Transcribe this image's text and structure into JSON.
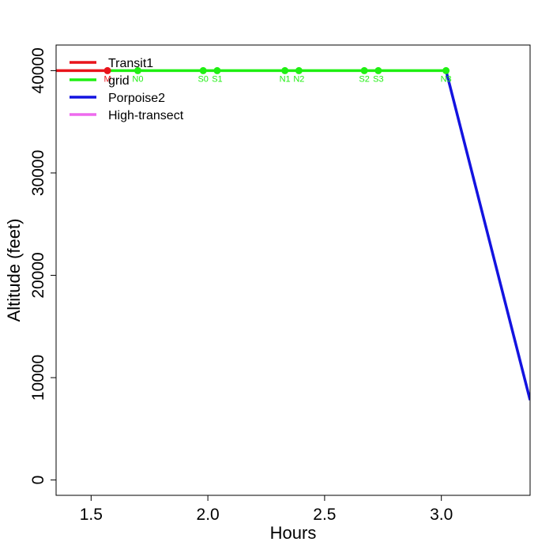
{
  "chart_data": {
    "type": "line",
    "xlabel": "Hours",
    "ylabel": "Altitude (feet)",
    "xlim": [
      1.35,
      3.38
    ],
    "ylim": [
      -1500,
      42500
    ],
    "x_ticks": [
      1.5,
      2.0,
      2.5,
      3.0
    ],
    "x_tick_labels": [
      "1.5",
      "2.0",
      "2.5",
      "3.0"
    ],
    "y_ticks": [
      0,
      10000,
      20000,
      30000,
      40000
    ],
    "y_tick_labels": [
      "0",
      "10000",
      "20000",
      "30000",
      "40000"
    ],
    "grid": false,
    "legend_position": "top-left",
    "series": [
      {
        "name": "Transit1",
        "color": "#e8141b",
        "points": [
          [
            1.35,
            40000
          ],
          [
            1.57,
            40000
          ]
        ]
      },
      {
        "name": "grid",
        "color": "#1fef12",
        "points": [
          [
            1.57,
            40000
          ],
          [
            3.02,
            40000
          ]
        ]
      },
      {
        "name": "Porpoise2",
        "color": "#1313e0",
        "points": [
          [
            3.02,
            40000
          ],
          [
            3.38,
            7800
          ]
        ]
      },
      {
        "name": "High-transect",
        "color": "#ee6aee",
        "points": []
      }
    ],
    "waypoints": [
      {
        "label": "M",
        "x": 1.57,
        "y": 40000,
        "color": "#e8141b",
        "marker_color": "#e8141b"
      },
      {
        "label": "N0",
        "x": 1.7,
        "y": 40000,
        "color": "#1fef12",
        "marker_color": "#1fef12"
      },
      {
        "label": "S0",
        "x": 1.98,
        "y": 40000,
        "color": "#1fef12",
        "marker_color": "#1fef12"
      },
      {
        "label": "S1",
        "x": 2.04,
        "y": 40000,
        "color": "#1fef12",
        "marker_color": "#1fef12"
      },
      {
        "label": "N1",
        "x": 2.33,
        "y": 40000,
        "color": "#1fef12",
        "marker_color": "#1fef12"
      },
      {
        "label": "N2",
        "x": 2.39,
        "y": 40000,
        "color": "#1fef12",
        "marker_color": "#1fef12"
      },
      {
        "label": "S2",
        "x": 2.67,
        "y": 40000,
        "color": "#1fef12",
        "marker_color": "#1fef12"
      },
      {
        "label": "S3",
        "x": 2.73,
        "y": 40000,
        "color": "#1fef12",
        "marker_color": "#1fef12"
      },
      {
        "label": "N3",
        "x": 3.02,
        "y": 40000,
        "color": "#1fef12",
        "marker_color": "#1fef12"
      }
    ]
  }
}
